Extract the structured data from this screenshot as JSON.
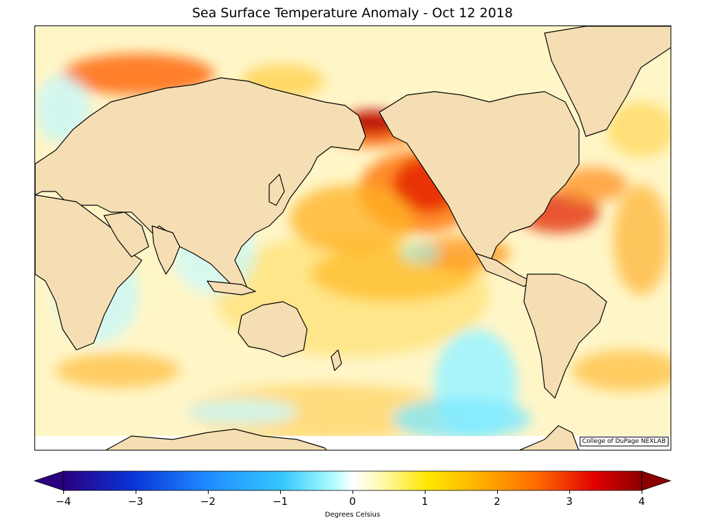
{
  "title": "Sea Surface Temperature Anomaly - Oct 12 2018",
  "credit": "College of DuPage NEXLAB",
  "colorbar": {
    "label": "Degrees Celsius",
    "min": -4,
    "max": 4,
    "extend": "both",
    "ticks": [
      "−4",
      "−3",
      "−2",
      "−1",
      "0",
      "1",
      "2",
      "3",
      "4"
    ],
    "tick_values": [
      -4,
      -3,
      -2,
      -1,
      0,
      1,
      2,
      3,
      4
    ],
    "colors": [
      "#2a0080",
      "#0a34d8",
      "#1e8cff",
      "#36c8ff",
      "#b4ffff",
      "#ffffff",
      "#fffab0",
      "#ffe600",
      "#ffb000",
      "#ff6a00",
      "#e00000",
      "#8a0000"
    ]
  },
  "map": {
    "projection": "mercator",
    "land_color": "#f5deb3",
    "ocean_background": "#ffffff",
    "center": "Pacific"
  }
}
